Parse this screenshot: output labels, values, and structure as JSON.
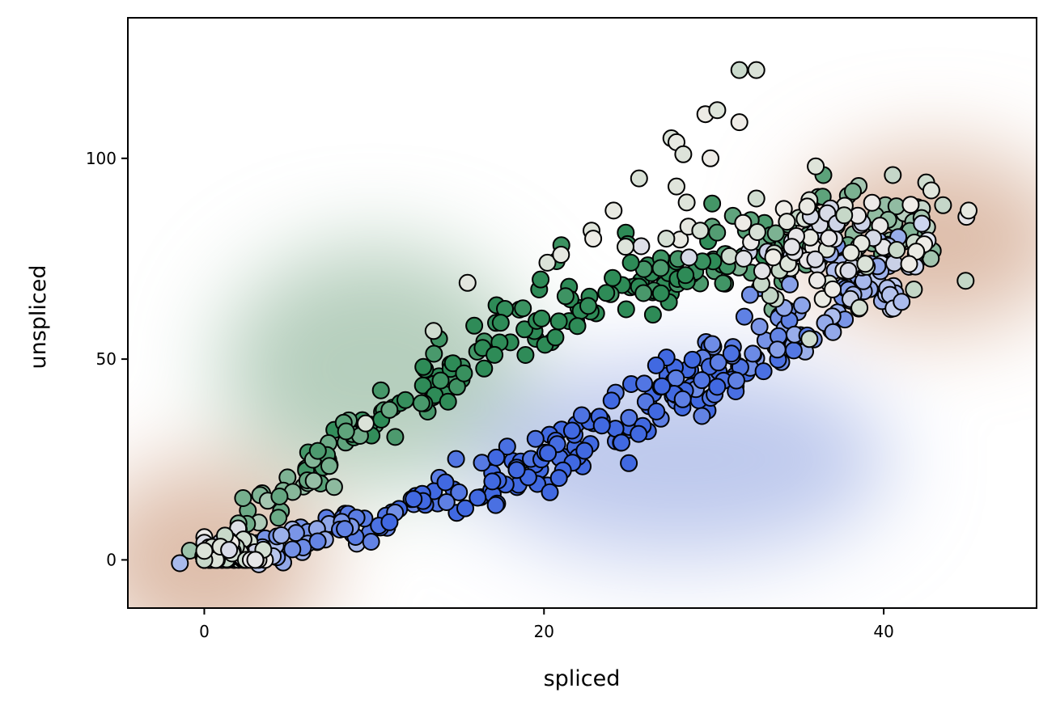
{
  "chart_data": {
    "type": "scatter",
    "title": "",
    "xlabel": "spliced",
    "ylabel": "unspliced",
    "xlim": [
      -4.5,
      49
    ],
    "ylim": [
      -12,
      135
    ],
    "xticks": [
      0,
      20,
      40
    ],
    "yticks": [
      0,
      50,
      100
    ],
    "grid": false,
    "legend": "none",
    "marker": "circle, black edge",
    "colors": {
      "upper_branch_start": "#dfe3dd",
      "upper_branch_end": "#2e8b57",
      "lower_branch_start": "#e6e9f2",
      "lower_branch_end": "#4169e1",
      "steady_state": "#f0ede8",
      "background_upper": "#a9c7b1",
      "background_lower": "#b3c0ea",
      "background_steady": "#d7b19b"
    },
    "background_density_regions": [
      {
        "name": "upper-branch-density",
        "center": [
          10,
          48
        ],
        "color": "#a9c7b1"
      },
      {
        "name": "lower-branch-density",
        "center": [
          28,
          25
        ],
        "color": "#b3c0ea"
      },
      {
        "name": "steady-state-origin-density",
        "center": [
          0,
          0
        ],
        "color": "#d7b19b"
      },
      {
        "name": "steady-state-high-density",
        "center": [
          43,
          80
        ],
        "color": "#d7b19b"
      }
    ],
    "branches": [
      {
        "name": "upper",
        "path_x": [
          0,
          2,
          5,
          8,
          11,
          14,
          17,
          20,
          23,
          26,
          29,
          32,
          36,
          40,
          43
        ],
        "path_y": [
          0,
          8,
          18,
          28,
          37,
          46,
          54,
          62,
          66,
          70,
          74,
          78,
          81,
          83,
          85
        ],
        "n_points": 260
      },
      {
        "name": "lower",
        "path_x": [
          0,
          3,
          6,
          9,
          12,
          15,
          18,
          21,
          24,
          27,
          30,
          33,
          36,
          39,
          42
        ],
        "path_y": [
          0,
          2,
          5,
          9,
          12,
          16,
          21,
          27,
          33,
          40,
          47,
          54,
          61,
          69,
          77
        ],
        "n_points": 300
      },
      {
        "name": "origin-cluster",
        "center": [
          1,
          1
        ],
        "n_points": 80
      },
      {
        "name": "high-cluster",
        "center": [
          37,
          77
        ],
        "n_points": 90
      }
    ],
    "outliers": [
      [
        31.5,
        122
      ],
      [
        32.5,
        122
      ],
      [
        29.5,
        111
      ],
      [
        30.2,
        112
      ],
      [
        31.5,
        109
      ],
      [
        27.5,
        105
      ],
      [
        27.8,
        104
      ],
      [
        28.2,
        101
      ],
      [
        27.8,
        93
      ],
      [
        28.4,
        89
      ],
      [
        29.8,
        100
      ],
      [
        25.6,
        95
      ],
      [
        24.1,
        87
      ],
      [
        32.5,
        90
      ],
      [
        36,
        98
      ],
      [
        42.5,
        94
      ],
      [
        42.8,
        92
      ],
      [
        45,
        87
      ],
      [
        35.5,
        88
      ],
      [
        28.5,
        83
      ],
      [
        29.2,
        82
      ],
      [
        22.8,
        82
      ],
      [
        22.9,
        80
      ],
      [
        24.8,
        78
      ],
      [
        27.2,
        80
      ],
      [
        15.5,
        69
      ],
      [
        9.5,
        34
      ],
      [
        13.5,
        57
      ],
      [
        20.2,
        74
      ],
      [
        21,
        76
      ]
    ]
  }
}
